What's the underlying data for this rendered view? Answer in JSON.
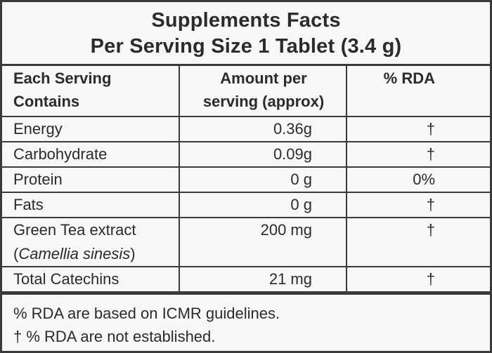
{
  "title": {
    "line1": "Supplements Facts",
    "line2": "Per Serving Size 1 Tablet (3.4 g)"
  },
  "headers": {
    "col1_line1": "Each Serving",
    "col1_line2": "Contains",
    "col2_line1": "Amount per",
    "col2_line2": "serving (approx)",
    "col3": "% RDA"
  },
  "rows": [
    {
      "name": "Energy",
      "amount": "0.36g",
      "rda": "†"
    },
    {
      "name": "Carbohydrate",
      "amount": "0.09g",
      "rda": "†"
    },
    {
      "name": "Protein",
      "amount": "0 g",
      "rda": "0%"
    },
    {
      "name": "Fats",
      "amount": "0 g",
      "rda": "†"
    },
    {
      "name": "Green Tea extract",
      "sub_open": "(",
      "sub_italic": "Camellia sinesis",
      "sub_close": ")",
      "amount": "200 mg",
      "rda": "†"
    },
    {
      "name": "Total Catechins",
      "amount": "21 mg",
      "rda": "†"
    }
  ],
  "footnotes": {
    "line1": "% RDA are based on ICMR guidelines.",
    "line2": "† % RDA are not established."
  }
}
